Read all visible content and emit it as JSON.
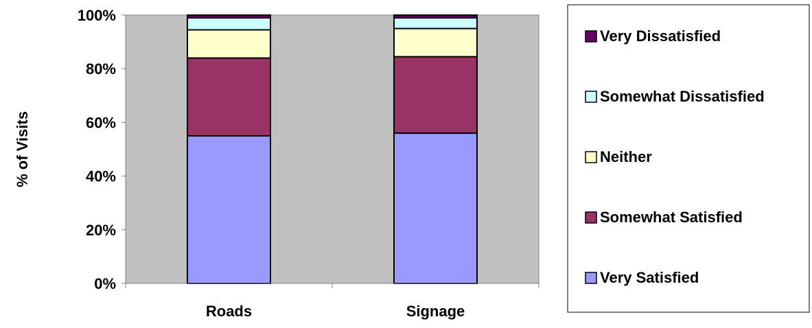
{
  "chart_data": {
    "type": "bar",
    "stacked": true,
    "percent_stacked": true,
    "title": "",
    "xlabel": "",
    "ylabel": "% of Visits",
    "categories": [
      "Roads",
      "Signage"
    ],
    "ylim": [
      0,
      100
    ],
    "yticks": [
      "0%",
      "20%",
      "40%",
      "60%",
      "80%",
      "100%"
    ],
    "ytick_values": [
      0,
      20,
      40,
      60,
      80,
      100
    ],
    "grid": false,
    "legend_position": "right",
    "series": [
      {
        "name": "Very Satisfied",
        "values": [
          55,
          56
        ],
        "color": "#9999FF"
      },
      {
        "name": "Somewhat Satisfied",
        "values": [
          29,
          28.5
        ],
        "color": "#993366"
      },
      {
        "name": "Neither",
        "values": [
          10.5,
          10.5
        ],
        "color": "#FFFFCC"
      },
      {
        "name": "Somewhat Dissatisfied",
        "values": [
          4.5,
          4
        ],
        "color": "#CCFFFF"
      },
      {
        "name": "Very Dissatisfied",
        "values": [
          1,
          1
        ],
        "color": "#660066"
      }
    ],
    "plot_background": "#C0C0C0"
  }
}
